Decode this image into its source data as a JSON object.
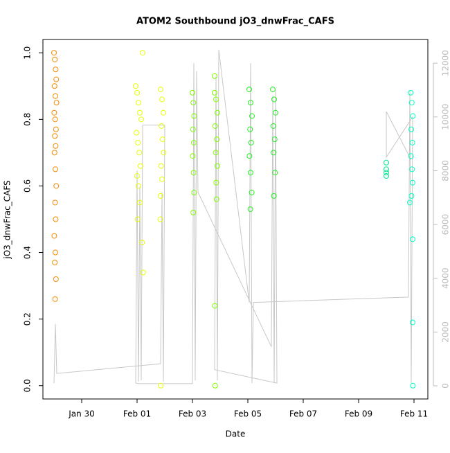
{
  "chart_data": {
    "type": "scatter",
    "title": "ATOM2 Southbound jO3_dnwFrac_CAFS",
    "x_label": "Date",
    "y_label": "jO3_dnwFrac_CAFS",
    "xlim": [
      28.6,
      42.5
    ],
    "xticks": [
      {
        "value": 30,
        "label": "Jan 30"
      },
      {
        "value": 32,
        "label": "Feb 01"
      },
      {
        "value": 34,
        "label": "Feb 03"
      },
      {
        "value": 36,
        "label": "Feb 05"
      },
      {
        "value": 38,
        "label": "Feb 07"
      },
      {
        "value": 40,
        "label": "Feb 09"
      },
      {
        "value": 42,
        "label": "Feb 11"
      }
    ],
    "ylim": [
      -0.04,
      1.04
    ],
    "yticks": [
      {
        "value": 0,
        "label": "0.0"
      },
      0.2,
      0.4,
      0.6,
      0.8,
      {
        "value": 1,
        "label": "1.0"
      }
    ],
    "y2lim": [
      -490,
      12880
    ],
    "y2ticks": [
      0,
      2000,
      4000,
      6000,
      8000,
      10000,
      12000
    ],
    "series": [
      {
        "color": "#f58a00",
        "x": [
          29.0,
          29.03,
          29.06,
          29.08,
          29.02,
          29.05,
          29.09,
          29.01,
          29.04,
          29.07,
          29.03,
          29.06,
          29.02,
          29.05,
          29.08,
          29.04,
          29.06,
          29.01,
          29.05,
          29.03,
          29.07,
          29.04
        ],
        "values": [
          1.0,
          0.98,
          0.95,
          0.92,
          0.9,
          0.87,
          0.85,
          0.82,
          0.8,
          0.77,
          0.75,
          0.72,
          0.7,
          0.65,
          0.6,
          0.55,
          0.5,
          0.45,
          0.4,
          0.37,
          0.32,
          0.26
        ]
      },
      {
        "color": "#e6ff00",
        "x": [
          31.95,
          32.0,
          32.05,
          32.1,
          32.15,
          31.98,
          32.03,
          32.08,
          32.12,
          32.0,
          32.05,
          32.1,
          32.02,
          32.18,
          32.22,
          32.2,
          32.85,
          32.9,
          32.95,
          32.88,
          32.92,
          32.96,
          32.87,
          32.9,
          32.85,
          32.84,
          32.86
        ],
        "values": [
          0.9,
          0.88,
          0.85,
          0.82,
          0.8,
          0.76,
          0.73,
          0.7,
          0.66,
          0.63,
          0.6,
          0.55,
          0.5,
          0.43,
          0.34,
          1.0,
          0.89,
          0.86,
          0.82,
          0.78,
          0.74,
          0.7,
          0.66,
          0.62,
          0.57,
          0.5,
          0.0
        ]
      },
      {
        "color": "#7fff00",
        "x": [
          34.0,
          34.03,
          34.06,
          34.02,
          34.05,
          34.01,
          34.04,
          34.06,
          34.03,
          34.8,
          34.85,
          34.9,
          34.82,
          34.88,
          34.84,
          34.9,
          34.86,
          34.87,
          34.8,
          34.81,
          34.82
        ],
        "values": [
          0.88,
          0.85,
          0.81,
          0.77,
          0.73,
          0.69,
          0.64,
          0.58,
          0.52,
          0.88,
          0.86,
          0.82,
          0.78,
          0.74,
          0.7,
          0.66,
          0.61,
          0.56,
          0.93,
          0.24,
          0.0
        ]
      },
      {
        "color": "#22f020",
        "x": [
          36.05,
          36.1,
          36.15,
          36.08,
          36.12,
          36.06,
          36.1,
          36.14,
          36.09,
          36.9,
          36.95,
          37.0,
          36.92,
          36.97,
          36.93,
          36.98,
          36.94
        ],
        "values": [
          0.89,
          0.85,
          0.81,
          0.77,
          0.73,
          0.69,
          0.64,
          0.58,
          0.53,
          0.89,
          0.86,
          0.82,
          0.78,
          0.74,
          0.7,
          0.64,
          0.57
        ]
      },
      {
        "color": "#00e68c",
        "x": [
          41.0,
          41.0,
          41.0,
          41.0
        ],
        "values": [
          0.67,
          0.65,
          0.64,
          0.63
        ]
      },
      {
        "color": "#00ffc0",
        "x": [
          41.88,
          41.92,
          41.96,
          41.9,
          41.94,
          41.89,
          41.93,
          41.95,
          41.91,
          41.85,
          41.95,
          41.95,
          41.96
        ],
        "values": [
          0.88,
          0.85,
          0.81,
          0.77,
          0.73,
          0.69,
          0.65,
          0.61,
          0.57,
          0.55,
          0.44,
          0.19,
          0.0
        ]
      },
      {
        "color": "#c8c8c8",
        "axis": "y2",
        "x": [
          29.0,
          29.05,
          29.1,
          32.85,
          32.9,
          32.95,
          33.0,
          32.2,
          32.15,
          32.1,
          32.05,
          32.0,
          31.95,
          32.05,
          34.0,
          34.05,
          34.1,
          34.15,
          34.2,
          36.85,
          36.9,
          36.95,
          37.0,
          37.05,
          34.8,
          34.85,
          34.9,
          34.95,
          36.05,
          36.1,
          36.15,
          36.2,
          41.8,
          41.85,
          41.9,
          41.95,
          41.0,
          41.0,
          41.9
        ],
        "values": [
          100,
          2300,
          460,
          820,
          7200,
          150,
          9700,
          9700,
          200,
          7400,
          150,
          8000,
          100,
          80,
          80,
          12000,
          200,
          11700,
          7200,
          1450,
          10800,
          100,
          11000,
          100,
          600,
          11500,
          200,
          12500,
          3100,
          12000,
          100,
          3100,
          3300,
          11000,
          100,
          10000,
          8500,
          10200,
          8400
        ]
      }
    ]
  }
}
